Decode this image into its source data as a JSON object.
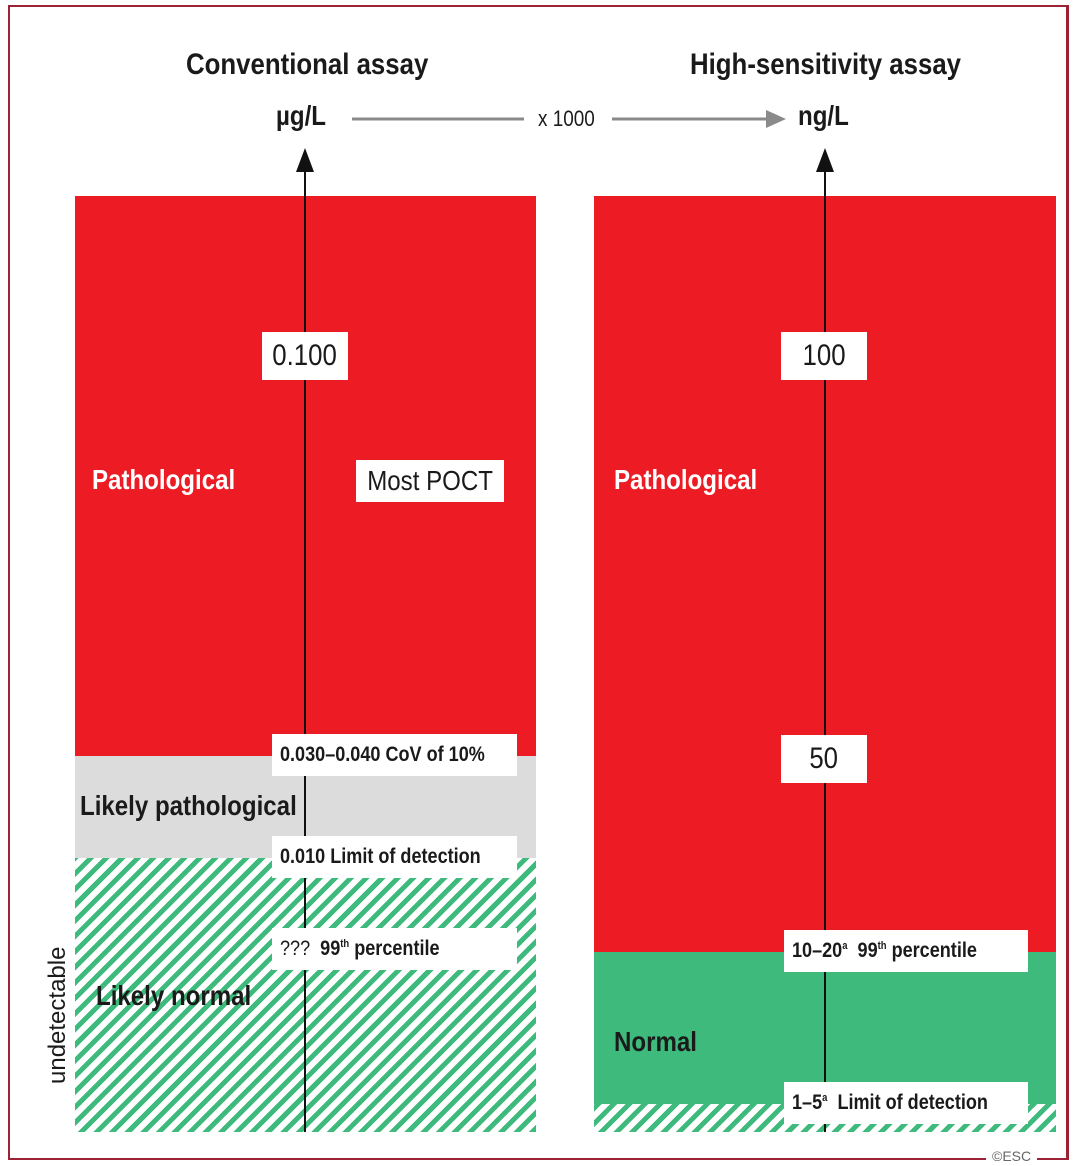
{
  "left": {
    "title": "Conventional assay",
    "unit": "µg/L",
    "zones": {
      "pathological": "Pathological",
      "likely_pathological": "Likely pathological",
      "likely_normal": "Likely normal",
      "undetectable": "undetectable"
    },
    "markers": {
      "m0100": "0.100",
      "most_poct": "Most POCT",
      "cov": "0.030–0.040  CoV of 10%",
      "lod": "0.010  Limit of detection",
      "p99_value": "???",
      "p99_label": "99",
      "p99_sup": "th",
      "p99_suffix": " percentile"
    }
  },
  "conversion": "x 1000",
  "right": {
    "title": "High-sensitivity assay",
    "unit": "ng/L",
    "zones": {
      "pathological": "Pathological",
      "normal": "Normal"
    },
    "markers": {
      "m100": "100",
      "m50": "50",
      "p99_value": "10–20",
      "p99_value_sup": "a",
      "p99_label": "99",
      "p99_sup": "th",
      "p99_suffix": " percentile",
      "lod_value": "1–5",
      "lod_value_sup": "a",
      "lod_suffix": "  Limit of detection"
    }
  },
  "copyright": "©ESC",
  "colors": {
    "pathological": "#ed1c24",
    "likely_pathological": "#dcdcdd",
    "normal": "#3dba7c",
    "frame": "#9b2335"
  }
}
